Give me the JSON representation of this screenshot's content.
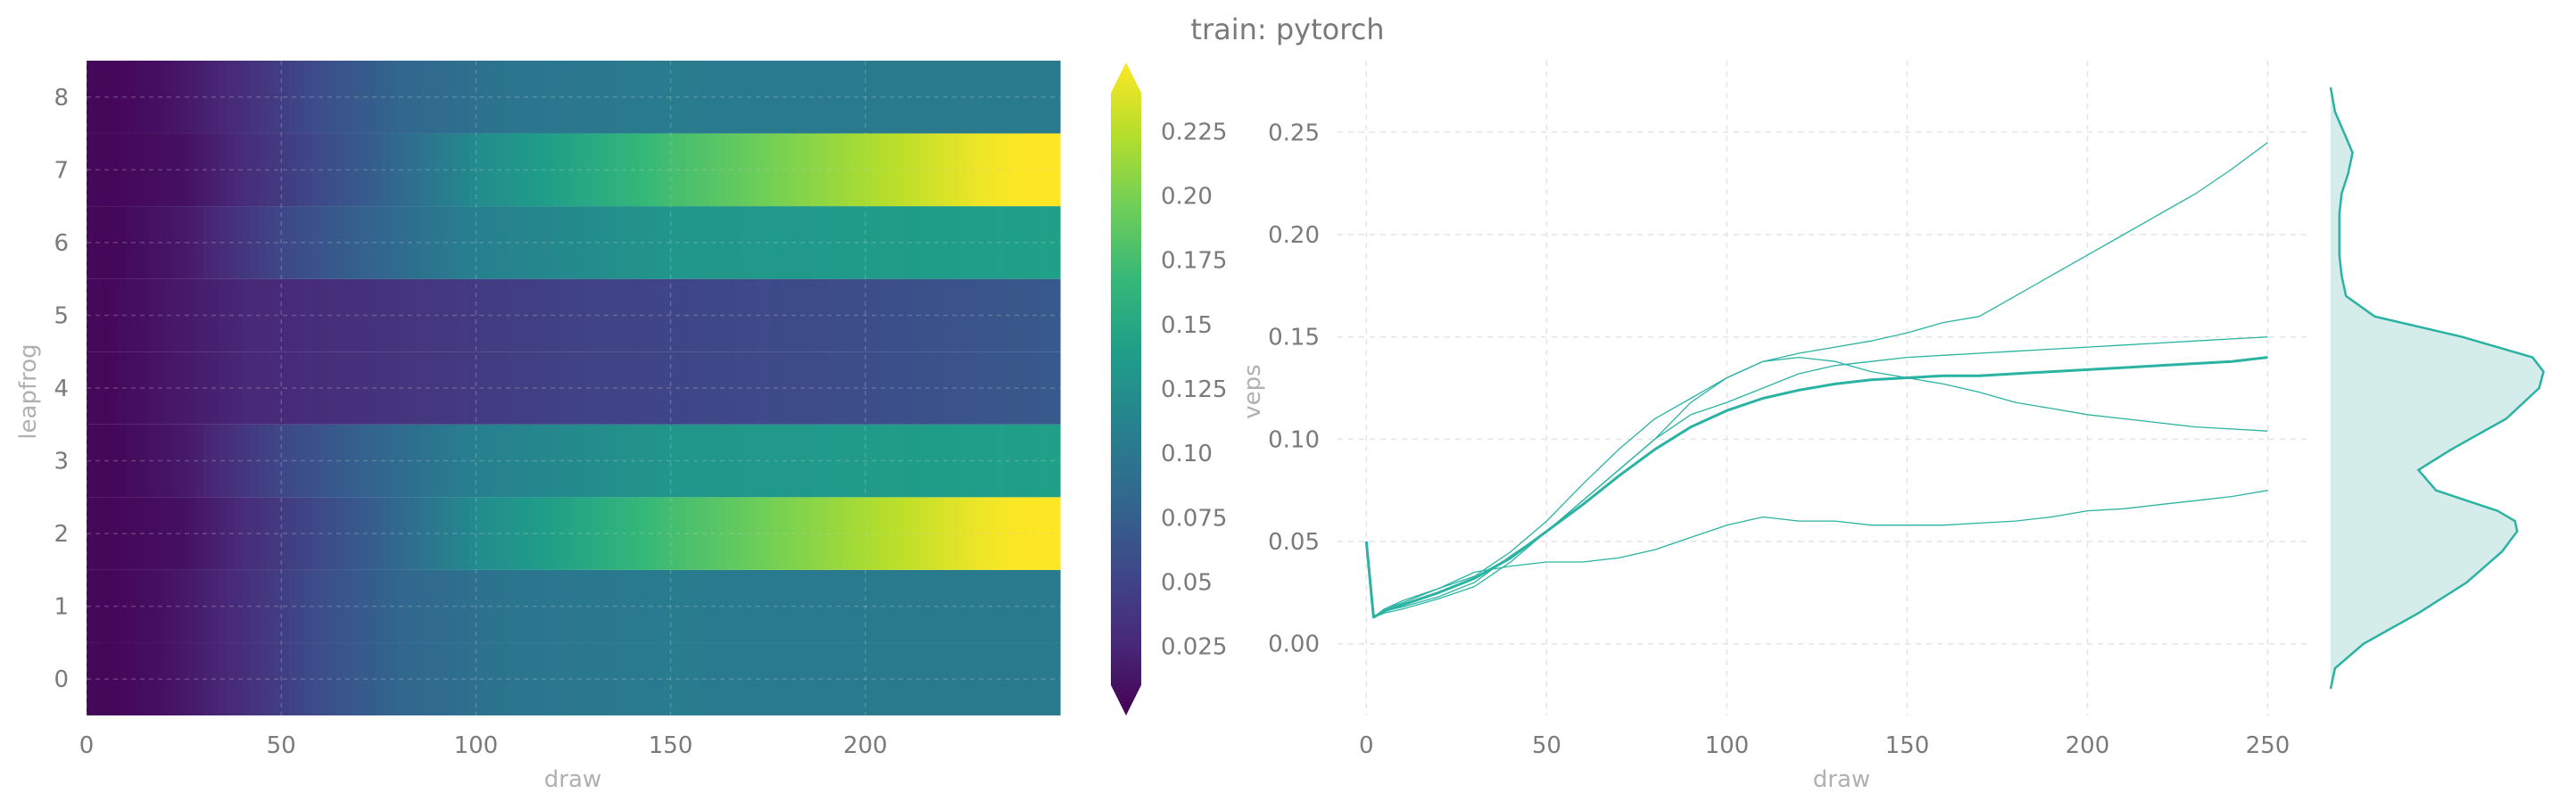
{
  "figure": {
    "title": "train: pytorch"
  },
  "colormap": {
    "name": "viridis",
    "stops": [
      "#440154",
      "#482878",
      "#3e4989",
      "#31688e",
      "#26828e",
      "#1f9e89",
      "#35b779",
      "#6ece58",
      "#b5de2b",
      "#fde725"
    ]
  },
  "chart_data": [
    {
      "type": "heatmap",
      "title": "",
      "xlabel": "draw",
      "ylabel": "leapfrog",
      "xlim": [
        0,
        250
      ],
      "ylim": [
        -0.5,
        8.5
      ],
      "x_ticks": [
        0,
        50,
        100,
        150,
        200
      ],
      "y_ticks": [
        0,
        1,
        2,
        3,
        4,
        5,
        6,
        7,
        8
      ],
      "colorbar": {
        "label": "veps",
        "range": [
          0.01,
          0.24
        ],
        "ticks": [
          0.025,
          0.05,
          0.075,
          0.1,
          0.125,
          0.15,
          0.175,
          0.2,
          0.225
        ],
        "extend": "both"
      },
      "rows": [
        {
          "leapfrog": 0,
          "draw": [
            0,
            5,
            20,
            40,
            60,
            80,
            110,
            150,
            200,
            250
          ],
          "veps": [
            0.015,
            0.013,
            0.02,
            0.04,
            0.065,
            0.085,
            0.1,
            0.105,
            0.104,
            0.104
          ]
        },
        {
          "leapfrog": 1,
          "draw": [
            0,
            5,
            20,
            40,
            60,
            80,
            110,
            150,
            200,
            250
          ],
          "veps": [
            0.015,
            0.013,
            0.02,
            0.04,
            0.065,
            0.085,
            0.1,
            0.105,
            0.104,
            0.104
          ]
        },
        {
          "leapfrog": 2,
          "draw": [
            0,
            5,
            25,
            50,
            75,
            100,
            150,
            200,
            230,
            250
          ],
          "veps": [
            0.015,
            0.013,
            0.02,
            0.05,
            0.08,
            0.12,
            0.17,
            0.21,
            0.235,
            0.245
          ]
        },
        {
          "leapfrog": 3,
          "draw": [
            0,
            5,
            25,
            50,
            75,
            100,
            150,
            200,
            250
          ],
          "veps": [
            0.015,
            0.013,
            0.025,
            0.06,
            0.085,
            0.11,
            0.13,
            0.135,
            0.14
          ]
        },
        {
          "leapfrog": 4,
          "draw": [
            0,
            5,
            40,
            80,
            120,
            160,
            200,
            250
          ],
          "veps": [
            0.015,
            0.014,
            0.035,
            0.045,
            0.055,
            0.06,
            0.065,
            0.075
          ]
        },
        {
          "leapfrog": 5,
          "draw": [
            0,
            5,
            40,
            80,
            120,
            160,
            200,
            250
          ],
          "veps": [
            0.015,
            0.014,
            0.035,
            0.045,
            0.055,
            0.06,
            0.065,
            0.075
          ]
        },
        {
          "leapfrog": 6,
          "draw": [
            0,
            5,
            25,
            50,
            75,
            100,
            150,
            200,
            250
          ],
          "veps": [
            0.015,
            0.013,
            0.025,
            0.06,
            0.085,
            0.11,
            0.13,
            0.135,
            0.14
          ]
        },
        {
          "leapfrog": 7,
          "draw": [
            0,
            5,
            25,
            50,
            75,
            100,
            150,
            200,
            230,
            250
          ],
          "veps": [
            0.015,
            0.013,
            0.02,
            0.05,
            0.08,
            0.12,
            0.17,
            0.21,
            0.235,
            0.245
          ]
        },
        {
          "leapfrog": 8,
          "draw": [
            0,
            5,
            20,
            40,
            60,
            80,
            110,
            150,
            200,
            250
          ],
          "veps": [
            0.015,
            0.013,
            0.02,
            0.04,
            0.065,
            0.085,
            0.1,
            0.105,
            0.104,
            0.104
          ]
        }
      ]
    },
    {
      "type": "line",
      "title": "",
      "xlabel": "draw",
      "ylabel": "",
      "xlim": [
        -8,
        262
      ],
      "ylim": [
        -0.035,
        0.285
      ],
      "x_ticks": [
        0,
        50,
        100,
        150,
        200,
        250
      ],
      "y_ticks": [
        0.0,
        0.05,
        0.1,
        0.15,
        0.2,
        0.25
      ],
      "grid": true,
      "color": "#2ab3a3",
      "series": [
        {
          "x": [
            0,
            2,
            5,
            10,
            20,
            30,
            40,
            50,
            60,
            70,
            80,
            90,
            100,
            110,
            120,
            130,
            140,
            150,
            160,
            170,
            180,
            190,
            200,
            210,
            220,
            230,
            240,
            250
          ],
          "y": [
            0.05,
            0.013,
            0.016,
            0.018,
            0.023,
            0.03,
            0.043,
            0.055,
            0.07,
            0.085,
            0.1,
            0.118,
            0.13,
            0.138,
            0.142,
            0.145,
            0.148,
            0.152,
            0.157,
            0.16,
            0.17,
            0.18,
            0.19,
            0.2,
            0.21,
            0.22,
            0.232,
            0.245
          ],
          "width": 1.3
        },
        {
          "x": [
            0,
            2,
            5,
            10,
            20,
            30,
            40,
            50,
            60,
            70,
            80,
            90,
            100,
            110,
            120,
            130,
            140,
            150,
            160,
            170,
            180,
            190,
            200,
            210,
            220,
            230,
            240,
            250
          ],
          "y": [
            0.05,
            0.013,
            0.017,
            0.021,
            0.027,
            0.033,
            0.045,
            0.06,
            0.078,
            0.095,
            0.11,
            0.12,
            0.13,
            0.138,
            0.14,
            0.138,
            0.133,
            0.13,
            0.127,
            0.123,
            0.118,
            0.115,
            0.112,
            0.11,
            0.108,
            0.106,
            0.105,
            0.104
          ],
          "width": 1.3
        },
        {
          "x": [
            0,
            2,
            5,
            10,
            20,
            30,
            40,
            50,
            60,
            70,
            80,
            90,
            100,
            110,
            120,
            130,
            140,
            150,
            160,
            170,
            180,
            190,
            200,
            210,
            220,
            230,
            240,
            250
          ],
          "y": [
            0.05,
            0.013,
            0.015,
            0.017,
            0.022,
            0.028,
            0.04,
            0.055,
            0.07,
            0.085,
            0.1,
            0.112,
            0.118,
            0.125,
            0.132,
            0.136,
            0.138,
            0.14,
            0.141,
            0.142,
            0.143,
            0.144,
            0.145,
            0.146,
            0.147,
            0.148,
            0.149,
            0.15
          ],
          "width": 1.3
        },
        {
          "x": [
            0,
            2,
            5,
            10,
            20,
            30,
            40,
            50,
            60,
            70,
            80,
            90,
            100,
            110,
            120,
            130,
            140,
            150,
            160,
            170,
            180,
            190,
            200,
            210,
            220,
            230,
            240,
            250
          ],
          "y": [
            0.05,
            0.013,
            0.017,
            0.02,
            0.027,
            0.035,
            0.038,
            0.04,
            0.04,
            0.042,
            0.046,
            0.052,
            0.058,
            0.062,
            0.06,
            0.06,
            0.058,
            0.058,
            0.058,
            0.059,
            0.06,
            0.062,
            0.065,
            0.066,
            0.068,
            0.07,
            0.072,
            0.075
          ],
          "width": 1.3
        },
        {
          "x": [
            0,
            2,
            5,
            10,
            20,
            30,
            40,
            50,
            60,
            70,
            80,
            90,
            100,
            110,
            120,
            130,
            140,
            150,
            160,
            170,
            180,
            190,
            200,
            210,
            220,
            230,
            240,
            250
          ],
          "y": [
            0.05,
            0.013,
            0.016,
            0.019,
            0.025,
            0.032,
            0.042,
            0.055,
            0.068,
            0.082,
            0.095,
            0.106,
            0.114,
            0.12,
            0.124,
            0.127,
            0.129,
            0.13,
            0.131,
            0.131,
            0.132,
            0.133,
            0.134,
            0.135,
            0.136,
            0.137,
            0.138,
            0.14
          ],
          "width": 3
        }
      ]
    },
    {
      "type": "area",
      "title": "",
      "orientation": "horizontal",
      "xlabel": "",
      "ylabel": "",
      "ylim": [
        -0.035,
        0.285
      ],
      "color": "#2ab3a3",
      "fill": "#d4ecea",
      "y": [
        -0.022,
        -0.012,
        0.0,
        0.015,
        0.03,
        0.045,
        0.055,
        0.06,
        0.065,
        0.075,
        0.085,
        0.095,
        0.11,
        0.125,
        0.133,
        0.14,
        0.15,
        0.16,
        0.17,
        0.18,
        0.19,
        0.2,
        0.21,
        0.22,
        0.23,
        0.24,
        0.25,
        0.26,
        0.272
      ],
      "density": [
        0.0,
        0.02,
        0.15,
        0.4,
        0.62,
        0.78,
        0.85,
        0.84,
        0.76,
        0.48,
        0.4,
        0.55,
        0.8,
        0.95,
        0.97,
        0.92,
        0.6,
        0.2,
        0.07,
        0.05,
        0.04,
        0.04,
        0.04,
        0.05,
        0.08,
        0.1,
        0.06,
        0.02,
        0.0
      ]
    }
  ]
}
